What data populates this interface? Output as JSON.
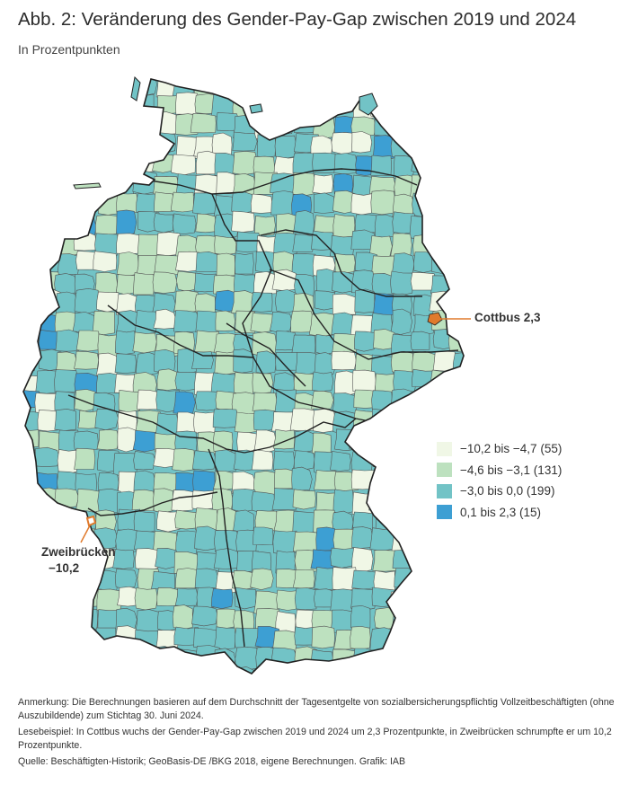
{
  "header": {
    "title": "Abb. 2: Veränderung des Gender-Pay-Gap zwischen 2019 und 2024",
    "subtitle": "In Prozentpunkten"
  },
  "colors": {
    "class1": "#f0f7e6",
    "class2": "#bde1bf",
    "class3": "#72c3c6",
    "class4": "#3d9fd3",
    "highlight": "#e07a2c",
    "boundary": "#555555",
    "state_boundary": "#222222"
  },
  "legend": {
    "items": [
      {
        "label": "−10,2 bis −4,7 (55)",
        "color": "#f0f7e6"
      },
      {
        "label": "−4,6 bis −3,1 (131)",
        "color": "#bde1bf"
      },
      {
        "label": "−3,0 bis 0,0 (199)",
        "color": "#72c3c6"
      },
      {
        "label": "0,1 bis 2,3 (15)",
        "color": "#3d9fd3"
      }
    ]
  },
  "callouts": {
    "cottbus": "Cottbus 2,3",
    "zweibruecken_name": "Zweibrücken",
    "zweibruecken_value": "−10,2"
  },
  "notes": {
    "anmerkung": "Anmerkung: Die Berechnungen basieren auf dem Durchschnitt der Tagesentgelte von sozialbersicherungspflichtig Vollzeitbeschäftigten (ohne Auszubildende) zum Stichtag 30. Juni 2024.",
    "lesebeispiel": "Lesebeispiel: In Cottbus wuchs der Gender-Pay-Gap zwischen 2019 und 2024 um 2,3 Prozentpunkte, in Zweibrücken schrumpfte er um 10,2 Prozentpunkte.",
    "quelle": "Quelle: Beschäftigten-Historik; GeoBasis-DE /BKG 2018, eigene Berechnungen. Grafik: IAB"
  }
}
